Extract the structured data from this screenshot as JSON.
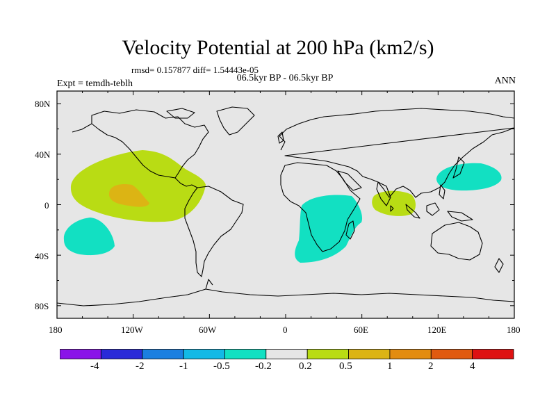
{
  "title": "Velocity Potential at 200 hPa (km2/s)",
  "stats": "rmsd= 0.157877 diff= 1.54443e-05",
  "period": "06.5kyr BP - 06.5kyr BP",
  "experiment": "Expt = temdh-teblh",
  "season": "ANN",
  "lat_labels": [
    "80N",
    "40N",
    "0",
    "40S",
    "80S"
  ],
  "lon_labels": [
    "180",
    "120W",
    "60W",
    "0",
    "60E",
    "120E",
    "180"
  ],
  "colorbar": {
    "colors": [
      "#8a13e8",
      "#2a2ad8",
      "#1b7fe0",
      "#13b9e6",
      "#12e0c2",
      "#e6e6e6",
      "#b9dc14",
      "#dcb414",
      "#e38c10",
      "#e05a10",
      "#de1212"
    ],
    "labels": [
      "-4",
      "-2",
      "-1",
      "-0.5",
      "-0.2",
      "0.2",
      "0.5",
      "1",
      "2",
      "4"
    ]
  },
  "anomaly_colors": {
    "positive_weak": "#b9dc14",
    "positive_mid": "#dcb414",
    "negative_weak": "#12e0c2"
  },
  "background_color": "#e6e6e6"
}
